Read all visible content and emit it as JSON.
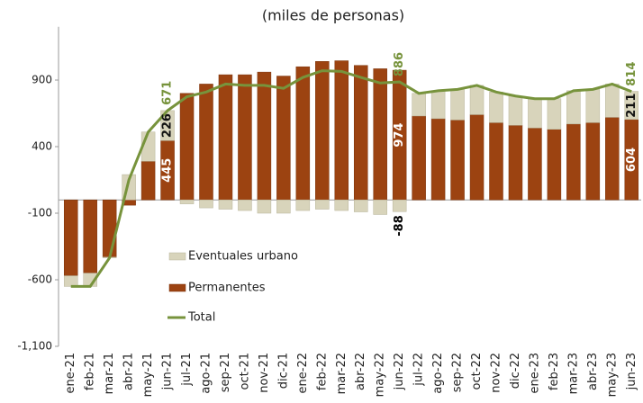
{
  "chart_data": {
    "type": "stacked-bar-line",
    "title": "(miles de personas)",
    "categories": [
      "ene-21",
      "feb-21",
      "mar-21",
      "abr-21",
      "may-21",
      "jun-21",
      "jul-21",
      "ago-21",
      "sep-21",
      "oct-21",
      "nov-21",
      "dic-21",
      "ene-22",
      "feb-22",
      "mar-22",
      "abr-22",
      "may-22",
      "jun-22",
      "jul-22",
      "ago-22",
      "sep-22",
      "oct-22",
      "nov-22",
      "dic-22",
      "ene-23",
      "feb-23",
      "mar-23",
      "abr-23",
      "may-23",
      "jun-23"
    ],
    "series": [
      {
        "name": "Eventuales urbano",
        "color": "#d8d4bb",
        "kind": "bar",
        "values": [
          -80,
          -100,
          -5,
          190,
          220,
          226,
          -30,
          -60,
          -70,
          -80,
          -100,
          -100,
          -80,
          -70,
          -80,
          -90,
          -110,
          -88,
          170,
          210,
          230,
          220,
          230,
          220,
          220,
          230,
          250,
          250,
          250,
          211
        ],
        "value_labels": [
          null,
          null,
          null,
          null,
          null,
          "226",
          null,
          null,
          null,
          null,
          null,
          null,
          null,
          null,
          null,
          null,
          null,
          "-88",
          null,
          null,
          null,
          null,
          null,
          null,
          null,
          null,
          null,
          null,
          null,
          "211"
        ]
      },
      {
        "name": "Permanentes",
        "color": "#9c4311",
        "kind": "bar",
        "values": [
          -570,
          -550,
          -430,
          -40,
          290,
          445,
          800,
          870,
          940,
          940,
          960,
          930,
          1000,
          1040,
          1045,
          1010,
          985,
          974,
          630,
          610,
          600,
          640,
          580,
          560,
          540,
          530,
          570,
          580,
          620,
          604
        ],
        "value_labels": [
          null,
          null,
          null,
          null,
          null,
          "445",
          null,
          null,
          null,
          null,
          null,
          null,
          null,
          null,
          null,
          null,
          null,
          "974",
          null,
          null,
          null,
          null,
          null,
          null,
          null,
          null,
          null,
          null,
          null,
          "604"
        ]
      },
      {
        "name": "Total",
        "color": "#77933c",
        "kind": "line",
        "values": [
          -650,
          -650,
          -435,
          150,
          510,
          671,
          775,
          810,
          870,
          860,
          860,
          838,
          920,
          970,
          965,
          920,
          878,
          886,
          800,
          820,
          830,
          860,
          810,
          780,
          760,
          760,
          820,
          830,
          870,
          814
        ],
        "value_labels": [
          null,
          null,
          null,
          null,
          null,
          "671",
          null,
          null,
          null,
          null,
          null,
          null,
          null,
          null,
          null,
          null,
          null,
          "886",
          null,
          null,
          null,
          null,
          null,
          null,
          null,
          null,
          null,
          null,
          null,
          "814"
        ]
      }
    ],
    "ylim": [
      -1100,
      1300
    ],
    "yticks": [
      {
        "value": -1100,
        "label": "-1,100"
      },
      -600,
      -100,
      400,
      900
    ],
    "grid": false,
    "legend": "inside-left"
  }
}
